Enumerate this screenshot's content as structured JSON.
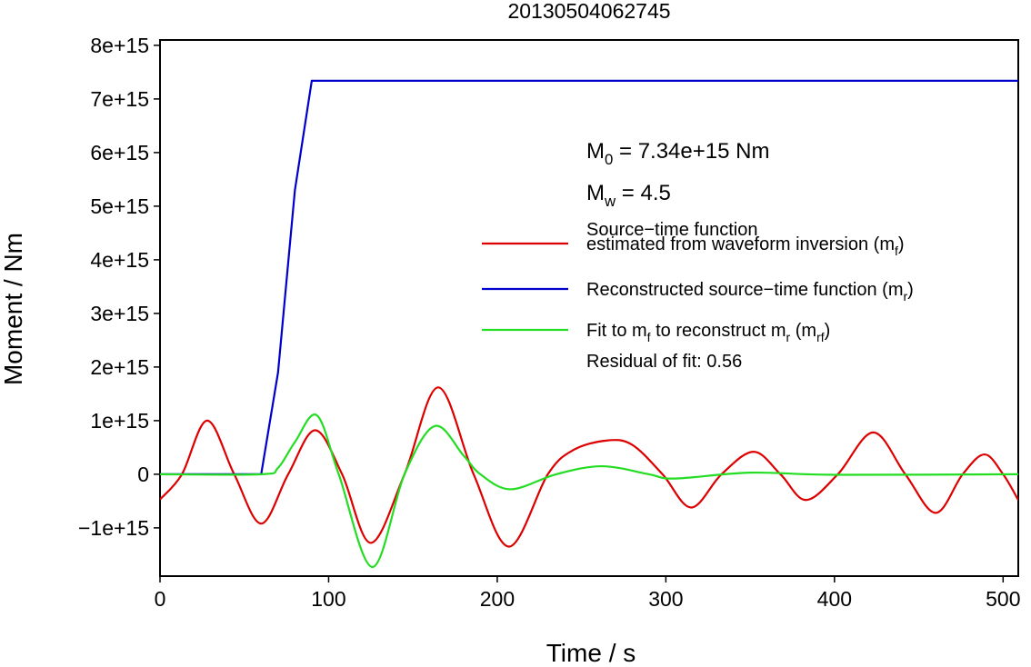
{
  "chart_data": {
    "type": "line",
    "title": "20130504062745",
    "x_label": "Time / s",
    "y_label": "Moment / Nm",
    "xlim": [
      0,
      509
    ],
    "xticks": [
      0,
      100,
      200,
      300,
      400,
      500
    ],
    "ylim": [
      -1900000000000000.0,
      8100000000000000.0
    ],
    "yticks": [
      {
        "value": -1000000000000000.0,
        "label": "−1e+15"
      },
      0,
      {
        "value": 1000000000000000.0,
        "label": "1e+15"
      },
      {
        "value": 2000000000000000.0,
        "label": "2e+15"
      },
      {
        "value": 3000000000000000.0,
        "label": "3e+15"
      },
      {
        "value": 4000000000000000.0,
        "label": "4e+15"
      },
      {
        "value": 5000000000000000.0,
        "label": "5e+15"
      },
      {
        "value": 6000000000000000.0,
        "label": "6e+15"
      },
      {
        "value": 7000000000000000.0,
        "label": "7e+15"
      },
      {
        "value": 8000000000000000.0,
        "label": "8e+15"
      }
    ],
    "series": [
      {
        "name": [
          [
            "Source−time function"
          ],
          [
            "estimated from waveform inversion (m",
            "f",
            ")"
          ]
        ],
        "color": "#dd0000",
        "smooth": true,
        "x": [
          0,
          13,
          28,
          44,
          60,
          76,
          92,
          108,
          125,
          145,
          165,
          186,
          207,
          230,
          245,
          265,
          280,
          298,
          315,
          333,
          352,
          368,
          383,
          402,
          423,
          442,
          460,
          476,
          489,
          500,
          509
        ],
        "values": [
          -470000000000000.0,
          0,
          1000000000000000.0,
          0,
          -920000000000000.0,
          0,
          820000000000000.0,
          0,
          -1280000000000000.0,
          0,
          1620000000000000.0,
          0,
          -1350000000000000.0,
          0,
          450000000000000.0,
          630000000000000.0,
          550000000000000.0,
          0,
          -620000000000000.0,
          0,
          420000000000000.0,
          0,
          -480000000000000.0,
          0,
          780000000000000.0,
          0,
          -720000000000000.0,
          0,
          370000000000000.0,
          0,
          -480000000000000.0
        ]
      },
      {
        "name": [
          [
            "Reconstructed source−time function (m",
            "r",
            ")"
          ]
        ],
        "color": "#0000cc",
        "smooth": false,
        "x": [
          0,
          60,
          70,
          80,
          90,
          509
        ],
        "values": [
          0,
          0,
          1900000000000000.0,
          5300000000000000.0,
          7340000000000000.0,
          7340000000000000.0
        ]
      },
      {
        "name": [
          [
            "Fit to m",
            "f",
            " to reconstruct m",
            "r",
            " (m",
            "rf",
            ")"
          ]
        ],
        "color": "#22dd22",
        "smooth": true,
        "x": [
          0,
          60,
          70,
          80,
          93,
          106,
          126,
          145,
          163,
          180,
          190,
          208,
          235,
          262,
          290,
          305,
          350,
          400,
          509
        ],
        "values": [
          0,
          0,
          120000000000000.0,
          600000000000000.0,
          1100000000000000.0,
          0,
          -1730000000000000.0,
          0,
          900000000000000.0,
          350000000000000.0,
          0,
          -280000000000000.0,
          0,
          150000000000000.0,
          0,
          -80000000000000.0,
          30000000000000.0,
          -10000000000000.0,
          0
        ]
      }
    ],
    "annotations": [
      [
        "M",
        "0",
        " = 7.34e+15 Nm"
      ],
      [
        "M",
        "w",
        " = 4.5"
      ],
      [
        "Residual of fit: 0.56"
      ]
    ]
  }
}
